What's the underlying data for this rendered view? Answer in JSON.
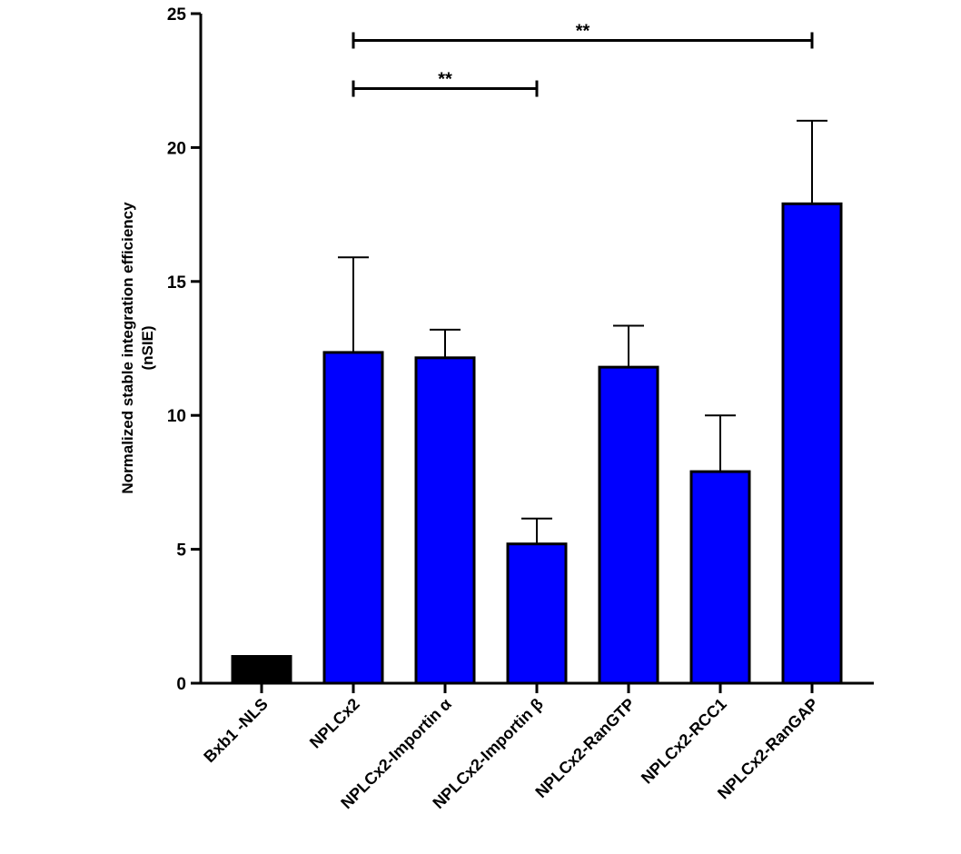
{
  "chart_data": {
    "type": "bar",
    "title": "",
    "xlabel": "",
    "ylabel_lines": [
      "Normalized stable integration efficiency",
      "(nSIE)"
    ],
    "ylim": [
      0,
      25
    ],
    "yticks": [
      0,
      5,
      10,
      15,
      20,
      25
    ],
    "categories": [
      "Bxb1 -NLS",
      "NPLCx2",
      "NPLCx2-Importin α",
      "NPLCx2-Importin β",
      "NPLCx2-RanGTP",
      "NPLCx2-RCC1",
      "NPLCx2-RanGAP"
    ],
    "values": [
      1.0,
      12.35,
      12.15,
      5.2,
      11.8,
      7.9,
      17.9
    ],
    "errors": [
      0,
      3.55,
      1.05,
      0.95,
      1.55,
      2.1,
      3.1
    ],
    "colors": [
      "#000000",
      "#0000ff",
      "#0000ff",
      "#0000ff",
      "#0000ff",
      "#0000ff",
      "#0000ff"
    ],
    "edge_color": "#000000",
    "grid": false,
    "significance": [
      {
        "from": 1,
        "to": 6,
        "y": 24.0,
        "label": "**"
      },
      {
        "from": 1,
        "to": 3,
        "y": 22.2,
        "label": "**"
      }
    ]
  }
}
